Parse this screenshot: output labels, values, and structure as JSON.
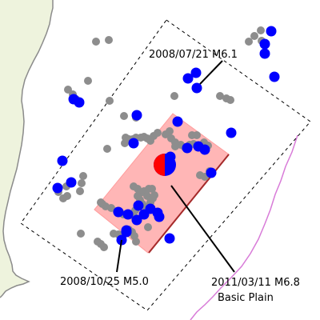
{
  "map": {
    "land_color": "#eef3dd",
    "coast_color": "#8b8b8b",
    "trench_color": "#d87bd8",
    "region_border_color": "#000000",
    "fault_fill_color": "#ffb6b6",
    "fault_edge_color": "#a52a2a",
    "blue_event_color": "#0000ff",
    "gray_event_color": "#8d8d8d",
    "mainshock_colors": [
      "#0000ff",
      "#ff0000"
    ]
  },
  "labels": {
    "event_1": "2008/07/21 M6.1",
    "event_2": "2008/10/25 M5.0",
    "event_3": "2011/03/11 M6.8",
    "fault_name": "Basic Plain"
  }
}
